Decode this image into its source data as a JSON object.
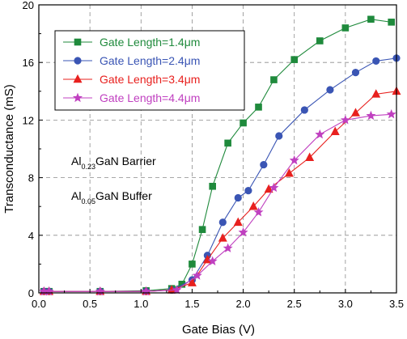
{
  "chart_data": {
    "type": "line",
    "xlabel": "Gate Bias (V)",
    "ylabel": "Transconductance (mS)",
    "xlim": [
      0.0,
      3.5
    ],
    "ylim": [
      0,
      20
    ],
    "xticks": [
      "0.0",
      "0.5",
      "1.0",
      "1.5",
      "2.0",
      "2.5",
      "3.0",
      "3.5"
    ],
    "yticks": [
      "0",
      "4",
      "8",
      "12",
      "16",
      "20"
    ],
    "grid": "dashed",
    "legend_position": "top-left",
    "annotations": [
      {
        "parts": [
          "Al",
          "0.23",
          "GaN Barrier"
        ]
      },
      {
        "parts": [
          "Al",
          "0.05",
          "GaN Buffer"
        ]
      }
    ],
    "series": [
      {
        "name": "Gate Length=1.4μm",
        "color": "#1f8a3c",
        "marker": "square",
        "x": [
          0.05,
          0.1,
          0.6,
          1.05,
          1.3,
          1.4,
          1.5,
          1.6,
          1.7,
          1.85,
          2.0,
          2.15,
          2.3,
          2.5,
          2.75,
          3.0,
          3.25,
          3.45
        ],
        "y": [
          0.1,
          0.1,
          0.1,
          0.15,
          0.3,
          0.6,
          2.0,
          4.4,
          7.4,
          10.4,
          11.8,
          12.9,
          14.8,
          16.2,
          17.5,
          18.4,
          19.0,
          18.8
        ]
      },
      {
        "name": "Gate Length=2.4μm",
        "color": "#3a55b4",
        "marker": "circle",
        "x": [
          0.05,
          0.1,
          0.6,
          1.05,
          1.3,
          1.5,
          1.65,
          1.8,
          1.95,
          2.05,
          2.2,
          2.35,
          2.6,
          2.85,
          3.1,
          3.3,
          3.5
        ],
        "y": [
          0.1,
          0.1,
          0.1,
          0.1,
          0.2,
          0.9,
          2.6,
          4.9,
          6.6,
          7.1,
          8.9,
          10.9,
          12.7,
          14.1,
          15.3,
          16.1,
          16.3
        ]
      },
      {
        "name": "Gate Length=3.4μm",
        "color": "#e8201e",
        "marker": "triangle",
        "x": [
          0.05,
          0.1,
          0.6,
          1.05,
          1.3,
          1.5,
          1.65,
          1.8,
          1.95,
          2.1,
          2.25,
          2.45,
          2.65,
          2.9,
          3.1,
          3.3,
          3.5
        ],
        "y": [
          0.1,
          0.1,
          0.1,
          0.1,
          0.2,
          0.7,
          2.3,
          3.8,
          4.9,
          6.0,
          7.2,
          8.3,
          9.4,
          11.2,
          12.5,
          13.8,
          14.0
        ]
      },
      {
        "name": "Gate Length=4.4μm",
        "color": "#c040c0",
        "marker": "star",
        "x": [
          0.05,
          0.1,
          0.6,
          1.05,
          1.35,
          1.55,
          1.7,
          1.85,
          2.0,
          2.15,
          2.3,
          2.5,
          2.75,
          3.0,
          3.25,
          3.45
        ],
        "y": [
          0.1,
          0.1,
          0.1,
          0.1,
          0.2,
          1.2,
          2.2,
          3.1,
          4.2,
          5.6,
          7.3,
          9.2,
          11.0,
          12.0,
          12.3,
          12.4
        ]
      }
    ]
  }
}
